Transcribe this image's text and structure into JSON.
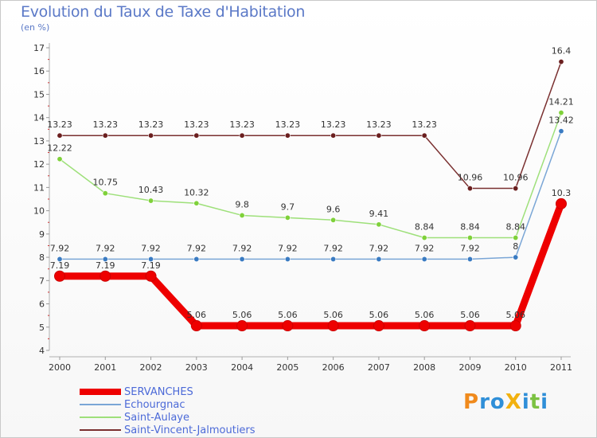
{
  "header": {
    "title": "Evolution du Taux de Taxe d'Habitation",
    "subtitle": "(en %)"
  },
  "logo": {
    "text": "ProXiti",
    "letters": [
      "P",
      "r",
      "o",
      "X",
      "i",
      "t",
      "i"
    ],
    "colors": [
      "#f08a1c",
      "#2f8fd8",
      "#2f8fd8",
      "#f2b10f",
      "#2f8fd8",
      "#7cc242",
      "#2f8fd8"
    ]
  },
  "chart_data": {
    "type": "line",
    "x": [
      "2000",
      "2001",
      "2002",
      "2003",
      "2004",
      "2005",
      "2006",
      "2007",
      "2008",
      "2009",
      "2010",
      "2011"
    ],
    "ylim": [
      4,
      17
    ],
    "yticks": [
      4,
      5,
      6,
      7,
      8,
      9,
      10,
      11,
      12,
      13,
      14,
      15,
      16,
      17
    ],
    "grid": false,
    "legend_position": "bottom-left",
    "series": [
      {
        "name": "SERVANCHES",
        "values": [
          7.19,
          7.19,
          7.19,
          5.06,
          5.06,
          5.06,
          5.06,
          5.06,
          5.06,
          5.06,
          5.06,
          10.3
        ],
        "labels": [
          "7.19",
          "7.19",
          "7.19",
          "5.06",
          "5.06",
          "5.06",
          "5.06",
          "5.06",
          "5.06",
          "5.06",
          "5.06",
          "10.3"
        ],
        "color": "#ee0000",
        "marker": "#ee0000",
        "thick": true
      },
      {
        "name": "Echourgnac",
        "values": [
          7.92,
          7.92,
          7.92,
          7.92,
          7.92,
          7.92,
          7.92,
          7.92,
          7.92,
          7.92,
          8,
          13.42
        ],
        "labels": [
          "7.92",
          "7.92",
          "7.92",
          "7.92",
          "7.92",
          "7.92",
          "7.92",
          "7.92",
          "7.92",
          "7.92",
          "8",
          "13.42"
        ],
        "color": "#7aa6d6",
        "marker": "#3a7bc2",
        "thick": false
      },
      {
        "name": "Saint-Aulaye",
        "values": [
          12.22,
          10.75,
          10.43,
          10.32,
          9.8,
          9.7,
          9.6,
          9.41,
          8.84,
          8.84,
          8.84,
          14.21
        ],
        "labels": [
          "12.22",
          "10.75",
          "10.43",
          "10.32",
          "9.8",
          "9.7",
          "9.6",
          "9.41",
          "8.84",
          "8.84",
          "8.84",
          "14.21"
        ],
        "color": "#9ee07a",
        "marker": "#7fd13a",
        "thick": false
      },
      {
        "name": "Saint-Vincent-Jalmoutiers",
        "values": [
          13.23,
          13.23,
          13.23,
          13.23,
          13.23,
          13.23,
          13.23,
          13.23,
          13.23,
          10.96,
          10.96,
          16.4
        ],
        "labels": [
          "13.23",
          "13.23",
          "13.23",
          "13.23",
          "13.23",
          "13.23",
          "13.23",
          "13.23",
          "13.23",
          "10.96",
          "10.96",
          "16.4"
        ],
        "color": "#7a3030",
        "marker": "#6b1f1f",
        "thick": false
      }
    ]
  }
}
